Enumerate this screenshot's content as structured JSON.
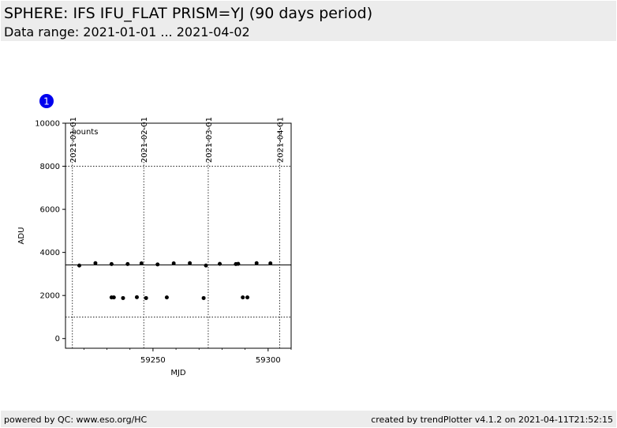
{
  "header": {
    "title": "SPHERE: IFS IFU_FLAT PRISM=YJ (90 days period)",
    "subtitle": "Data range: 2021-01-01 ... 2021-04-02"
  },
  "footer": {
    "left": "powered by QC: www.eso.org/HC",
    "right": "created by trendPlotter v4.1.2 on 2021-04-11T21:52:15"
  },
  "panel_badge": "1",
  "colors": {
    "badge": "#0000ee",
    "header_bg": "#ececec",
    "points": "#000000"
  },
  "chart_data": {
    "type": "scatter",
    "xlabel": "MJD",
    "ylabel": "ADU",
    "annotation": "counts",
    "xlim": [
      59212,
      59310
    ],
    "ylim": [
      -450,
      10000
    ],
    "x_ticks": [
      59250,
      59300
    ],
    "y_ticks": [
      0,
      2000,
      4000,
      6000,
      8000,
      10000
    ],
    "date_markers": [
      {
        "mjd": 59215,
        "label": "2021-01-01"
      },
      {
        "mjd": 59246,
        "label": "2021-02-01"
      },
      {
        "mjd": 59274,
        "label": "2021-03-01"
      },
      {
        "mjd": 59305,
        "label": "2021-04-01"
      }
    ],
    "reference_line": 3420,
    "dotted_limits": [
      1000,
      8000
    ],
    "points": [
      [
        59218,
        3390
      ],
      [
        59225,
        3500
      ],
      [
        59232,
        3460
      ],
      [
        59232,
        1910
      ],
      [
        59233,
        1910
      ],
      [
        59237,
        1880
      ],
      [
        59239,
        3460
      ],
      [
        59243,
        1920
      ],
      [
        59245,
        3490
      ],
      [
        59247,
        1880
      ],
      [
        59252,
        3440
      ],
      [
        59256,
        1910
      ],
      [
        59259,
        3490
      ],
      [
        59266,
        3500
      ],
      [
        59272,
        1880
      ],
      [
        59273,
        3390
      ],
      [
        59279,
        3470
      ],
      [
        59286,
        3460
      ],
      [
        59287,
        3470
      ],
      [
        59289,
        1910
      ],
      [
        59291,
        1910
      ],
      [
        59295,
        3500
      ],
      [
        59301,
        3490
      ]
    ]
  }
}
